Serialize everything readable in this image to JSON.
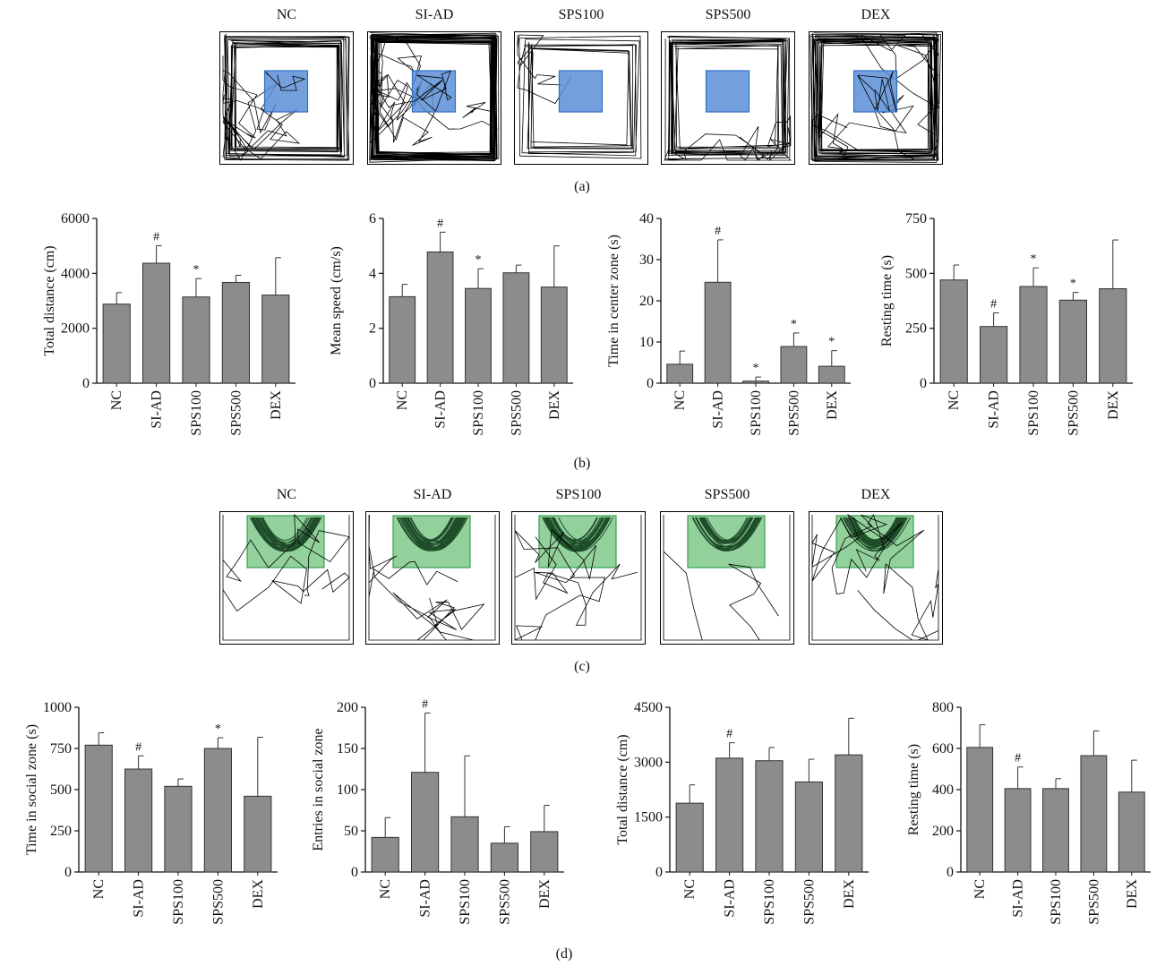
{
  "panel_labels": {
    "a": "(a)",
    "b": "(b)",
    "c": "(c)",
    "d": "(d)"
  },
  "groups": [
    "NC",
    "SI-AD",
    "SPS100",
    "SPS500",
    "DEX"
  ],
  "colors": {
    "bar": "#8c8c8f",
    "center_zone": "#5b8fd6",
    "center_zone_border": "#2f6fc6",
    "social_zone": "#7fc98a",
    "social_zone_border": "#3aa04e",
    "track": "#000000",
    "social_track": "#1f4d2a"
  },
  "chart_data": [
    {
      "type": "bar",
      "panel": "b",
      "ylabel": "Total distance (cm)",
      "categories": [
        "NC",
        "SI-AD",
        "SPS100",
        "SPS500",
        "DEX"
      ],
      "values": [
        2880,
        4370,
        3140,
        3670,
        3210
      ],
      "errors": [
        420,
        640,
        670,
        260,
        1360
      ],
      "marks": [
        "",
        "#",
        "*",
        "",
        ""
      ],
      "ylim": [
        0,
        6000
      ],
      "yticks": [
        0,
        2000,
        4000,
        6000
      ]
    },
    {
      "type": "bar",
      "panel": "b",
      "ylabel": "Mean speed (cm/s)",
      "categories": [
        "NC",
        "SI-AD",
        "SPS100",
        "SPS500",
        "DEX"
      ],
      "values": [
        3.15,
        4.78,
        3.45,
        4.02,
        3.5
      ],
      "errors": [
        0.45,
        0.72,
        0.72,
        0.28,
        1.5
      ],
      "marks": [
        "",
        "#",
        "*",
        "",
        ""
      ],
      "ylim": [
        0,
        6
      ],
      "yticks": [
        0,
        2,
        4,
        6
      ]
    },
    {
      "type": "bar",
      "panel": "b",
      "ylabel": "Time in center zone (s)",
      "categories": [
        "NC",
        "SI-AD",
        "SPS100",
        "SPS500",
        "DEX"
      ],
      "values": [
        4.6,
        24.5,
        0.5,
        8.9,
        4.1
      ],
      "errors": [
        3.2,
        10.3,
        1.0,
        3.3,
        3.8
      ],
      "marks": [
        "",
        "#",
        "*",
        "*",
        "*"
      ],
      "ylim": [
        0,
        40
      ],
      "yticks": [
        0,
        10,
        20,
        30,
        40
      ]
    },
    {
      "type": "bar",
      "panel": "b",
      "ylabel": "Resting time (s)",
      "categories": [
        "NC",
        "SI-AD",
        "SPS100",
        "SPS500",
        "DEX"
      ],
      "values": [
        470,
        258,
        440,
        378,
        430
      ],
      "errors": [
        68,
        62,
        85,
        35,
        222
      ],
      "marks": [
        "",
        "#",
        "*",
        "*",
        ""
      ],
      "ylim": [
        0,
        750
      ],
      "yticks": [
        0,
        250,
        500,
        750
      ]
    },
    {
      "type": "bar",
      "panel": "d",
      "ylabel": "Time in social zone (s)",
      "categories": [
        "NC",
        "SI-AD",
        "SPS100",
        "SPS500",
        "DEX"
      ],
      "values": [
        770,
        625,
        520,
        750,
        460
      ],
      "errors": [
        75,
        80,
        45,
        65,
        358
      ],
      "marks": [
        "",
        "#",
        "",
        "*",
        ""
      ],
      "ylim": [
        0,
        1000
      ],
      "yticks": [
        0,
        250,
        500,
        750,
        1000
      ]
    },
    {
      "type": "bar",
      "panel": "d",
      "ylabel": "Entries in social zone",
      "categories": [
        "NC",
        "SI-AD",
        "SPS100",
        "SPS500",
        "DEX"
      ],
      "values": [
        42,
        121,
        67,
        35,
        49
      ],
      "errors": [
        24,
        72,
        74,
        20,
        32
      ],
      "marks": [
        "",
        "#",
        "",
        "",
        ""
      ],
      "ylim": [
        0,
        200
      ],
      "yticks": [
        0,
        50,
        100,
        150,
        200
      ]
    },
    {
      "type": "bar",
      "panel": "d",
      "ylabel": "Total distance (cm)",
      "categories": [
        "NC",
        "SI-AD",
        "SPS100",
        "SPS500",
        "DEX"
      ],
      "values": [
        1880,
        3110,
        3040,
        2460,
        3200
      ],
      "errors": [
        500,
        420,
        360,
        620,
        1000
      ],
      "marks": [
        "",
        "#",
        "",
        "",
        ""
      ],
      "ylim": [
        0,
        4500
      ],
      "yticks": [
        0,
        1500,
        3000,
        4500
      ]
    },
    {
      "type": "bar",
      "panel": "d",
      "ylabel": "Resting time (s)",
      "categories": [
        "NC",
        "SI-AD",
        "SPS100",
        "SPS500",
        "DEX"
      ],
      "values": [
        605,
        405,
        405,
        565,
        388
      ],
      "errors": [
        110,
        105,
        48,
        120,
        155
      ],
      "marks": [
        "",
        "#",
        "",
        "",
        ""
      ],
      "ylim": [
        0,
        800
      ],
      "yticks": [
        0,
        200,
        400,
        600,
        800
      ]
    }
  ]
}
